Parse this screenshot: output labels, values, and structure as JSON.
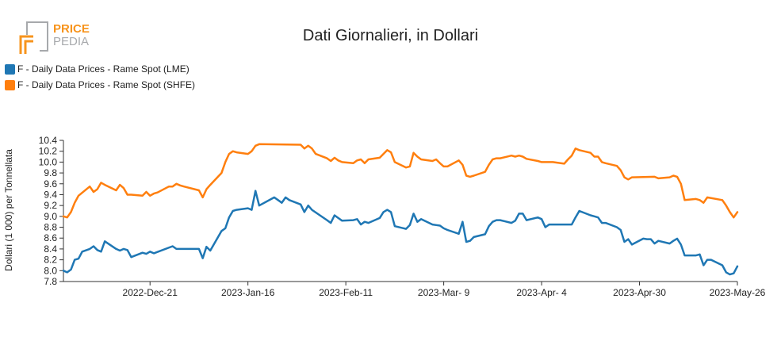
{
  "logo": {
    "line1": "PRICE",
    "line2": "PEDIA",
    "colors": {
      "orange": "#f7941d",
      "gray": "#a7a9ac"
    }
  },
  "chart_data": {
    "type": "line",
    "title": "Dati Giornalieri, in Dollari",
    "xlabel": "",
    "ylabel": "Dollari (1 000) per Tonnellata",
    "ylim": [
      7.8,
      10.4
    ],
    "yticks": [
      7.8,
      8.0,
      8.2,
      8.4,
      8.6,
      8.8,
      9.0,
      9.2,
      9.4,
      9.6,
      9.8,
      10.0,
      10.2,
      10.4
    ],
    "xrange": [
      "2022-11-28",
      "2023-05-26"
    ],
    "xticks": [
      {
        "date": "2022-12-21",
        "label": "2022-Dec-21"
      },
      {
        "date": "2023-01-16",
        "label": "2023-Jan-16"
      },
      {
        "date": "2023-02-11",
        "label": "2023-Feb-11"
      },
      {
        "date": "2023-03-09",
        "label": "2023-Mar- 9"
      },
      {
        "date": "2023-04-04",
        "label": "2023-Apr- 4"
      },
      {
        "date": "2023-04-30",
        "label": "2023-Apr-30"
      },
      {
        "date": "2023-05-26",
        "label": "2023-May-26"
      }
    ],
    "grid": false,
    "legend_position": "top-left",
    "series": [
      {
        "name": "F - Daily Data Prices - Rame Spot (LME)",
        "color": "#1f77b4",
        "points": [
          [
            "2022-11-28",
            8.0
          ],
          [
            "2022-11-29",
            7.97
          ],
          [
            "2022-11-30",
            8.02
          ],
          [
            "2022-12-01",
            8.2
          ],
          [
            "2022-12-02",
            8.22
          ],
          [
            "2022-12-03",
            8.35
          ],
          [
            "2022-12-05",
            8.4
          ],
          [
            "2022-12-06",
            8.45
          ],
          [
            "2022-12-07",
            8.38
          ],
          [
            "2022-12-08",
            8.35
          ],
          [
            "2022-12-09",
            8.54
          ],
          [
            "2022-12-12",
            8.4
          ],
          [
            "2022-12-13",
            8.37
          ],
          [
            "2022-12-14",
            8.4
          ],
          [
            "2022-12-15",
            8.38
          ],
          [
            "2022-12-16",
            8.25
          ],
          [
            "2022-12-19",
            8.33
          ],
          [
            "2022-12-20",
            8.31
          ],
          [
            "2022-12-21",
            8.35
          ],
          [
            "2022-12-22",
            8.32
          ],
          [
            "2022-12-27",
            8.45
          ],
          [
            "2022-12-28",
            8.4
          ],
          [
            "2022-12-30",
            8.4
          ],
          [
            "2023-01-03",
            8.4
          ],
          [
            "2023-01-04",
            8.23
          ],
          [
            "2023-01-05",
            8.44
          ],
          [
            "2023-01-06",
            8.37
          ],
          [
            "2023-01-09",
            8.73
          ],
          [
            "2023-01-10",
            8.78
          ],
          [
            "2023-01-11",
            8.98
          ],
          [
            "2023-01-12",
            9.1
          ],
          [
            "2023-01-13",
            9.12
          ],
          [
            "2023-01-16",
            9.15
          ],
          [
            "2023-01-17",
            9.12
          ],
          [
            "2023-01-18",
            9.47
          ],
          [
            "2023-01-19",
            9.2
          ],
          [
            "2023-01-23",
            9.35
          ],
          [
            "2023-01-24",
            9.3
          ],
          [
            "2023-01-25",
            9.25
          ],
          [
            "2023-01-26",
            9.35
          ],
          [
            "2023-01-27",
            9.3
          ],
          [
            "2023-01-30",
            9.22
          ],
          [
            "2023-01-31",
            9.08
          ],
          [
            "2023-02-01",
            9.2
          ],
          [
            "2023-02-02",
            9.12
          ],
          [
            "2023-02-06",
            8.93
          ],
          [
            "2023-02-07",
            8.88
          ],
          [
            "2023-02-08",
            9.02
          ],
          [
            "2023-02-09",
            8.97
          ],
          [
            "2023-02-10",
            8.92
          ],
          [
            "2023-02-13",
            8.93
          ],
          [
            "2023-02-14",
            8.95
          ],
          [
            "2023-02-15",
            8.85
          ],
          [
            "2023-02-16",
            8.9
          ],
          [
            "2023-02-17",
            8.88
          ],
          [
            "2023-02-20",
            8.97
          ],
          [
            "2023-02-21",
            9.08
          ],
          [
            "2023-02-22",
            9.12
          ],
          [
            "2023-02-23",
            9.08
          ],
          [
            "2023-02-24",
            8.82
          ],
          [
            "2023-02-27",
            8.77
          ],
          [
            "2023-02-28",
            8.84
          ],
          [
            "2023-03-01",
            9.05
          ],
          [
            "2023-03-02",
            8.9
          ],
          [
            "2023-03-03",
            8.95
          ],
          [
            "2023-03-06",
            8.85
          ],
          [
            "2023-03-07",
            8.84
          ],
          [
            "2023-03-08",
            8.83
          ],
          [
            "2023-03-09",
            8.78
          ],
          [
            "2023-03-10",
            8.75
          ],
          [
            "2023-03-13",
            8.68
          ],
          [
            "2023-03-14",
            8.9
          ],
          [
            "2023-03-15",
            8.53
          ],
          [
            "2023-03-16",
            8.55
          ],
          [
            "2023-03-17",
            8.62
          ],
          [
            "2023-03-20",
            8.67
          ],
          [
            "2023-03-21",
            8.82
          ],
          [
            "2023-03-22",
            8.9
          ],
          [
            "2023-03-23",
            8.93
          ],
          [
            "2023-03-24",
            8.93
          ],
          [
            "2023-03-27",
            8.88
          ],
          [
            "2023-03-28",
            8.92
          ],
          [
            "2023-03-29",
            9.05
          ],
          [
            "2023-03-30",
            9.05
          ],
          [
            "2023-03-31",
            8.93
          ],
          [
            "2023-04-03",
            8.98
          ],
          [
            "2023-04-04",
            8.95
          ],
          [
            "2023-04-05",
            8.8
          ],
          [
            "2023-04-06",
            8.85
          ],
          [
            "2023-04-11",
            8.85
          ],
          [
            "2023-04-12",
            8.85
          ],
          [
            "2023-04-13",
            8.98
          ],
          [
            "2023-04-14",
            9.1
          ],
          [
            "2023-04-17",
            9.02
          ],
          [
            "2023-04-18",
            9.0
          ],
          [
            "2023-04-19",
            8.98
          ],
          [
            "2023-04-20",
            8.88
          ],
          [
            "2023-04-21",
            8.88
          ],
          [
            "2023-04-24",
            8.8
          ],
          [
            "2023-04-25",
            8.75
          ],
          [
            "2023-04-26",
            8.53
          ],
          [
            "2023-04-27",
            8.58
          ],
          [
            "2023-04-28",
            8.48
          ],
          [
            "2023-05-01",
            8.59
          ],
          [
            "2023-05-02",
            8.58
          ],
          [
            "2023-05-03",
            8.58
          ],
          [
            "2023-05-04",
            8.5
          ],
          [
            "2023-05-05",
            8.55
          ],
          [
            "2023-05-08",
            8.5
          ],
          [
            "2023-05-09",
            8.55
          ],
          [
            "2023-05-10",
            8.59
          ],
          [
            "2023-05-11",
            8.48
          ],
          [
            "2023-05-12",
            8.28
          ],
          [
            "2023-05-15",
            8.28
          ],
          [
            "2023-05-16",
            8.3
          ],
          [
            "2023-05-17",
            8.1
          ],
          [
            "2023-05-18",
            8.2
          ],
          [
            "2023-05-19",
            8.2
          ],
          [
            "2023-05-22",
            8.1
          ],
          [
            "2023-05-23",
            7.97
          ],
          [
            "2023-05-24",
            7.93
          ],
          [
            "2023-05-25",
            7.95
          ],
          [
            "2023-05-26",
            8.08
          ]
        ]
      },
      {
        "name": "F - Daily Data Prices - Rame Spot (SHFE)",
        "color": "#ff7f0e",
        "points": [
          [
            "2022-11-28",
            9.0
          ],
          [
            "2022-11-29",
            8.98
          ],
          [
            "2022-11-30",
            9.08
          ],
          [
            "2022-12-01",
            9.25
          ],
          [
            "2022-12-02",
            9.38
          ],
          [
            "2022-12-05",
            9.55
          ],
          [
            "2022-12-06",
            9.45
          ],
          [
            "2022-12-07",
            9.5
          ],
          [
            "2022-12-08",
            9.62
          ],
          [
            "2022-12-09",
            9.58
          ],
          [
            "2022-12-12",
            9.48
          ],
          [
            "2022-12-13",
            9.58
          ],
          [
            "2022-12-14",
            9.52
          ],
          [
            "2022-12-15",
            9.4
          ],
          [
            "2022-12-16",
            9.4
          ],
          [
            "2022-12-19",
            9.38
          ],
          [
            "2022-12-20",
            9.45
          ],
          [
            "2022-12-21",
            9.38
          ],
          [
            "2022-12-22",
            9.42
          ],
          [
            "2022-12-23",
            9.44
          ],
          [
            "2022-12-26",
            9.55
          ],
          [
            "2022-12-27",
            9.55
          ],
          [
            "2022-12-28",
            9.6
          ],
          [
            "2022-12-29",
            9.57
          ],
          [
            "2022-12-30",
            9.55
          ],
          [
            "2023-01-03",
            9.48
          ],
          [
            "2023-01-04",
            9.35
          ],
          [
            "2023-01-05",
            9.5
          ],
          [
            "2023-01-06",
            9.58
          ],
          [
            "2023-01-09",
            9.8
          ],
          [
            "2023-01-10",
            10.0
          ],
          [
            "2023-01-11",
            10.15
          ],
          [
            "2023-01-12",
            10.2
          ],
          [
            "2023-01-13",
            10.18
          ],
          [
            "2023-01-16",
            10.15
          ],
          [
            "2023-01-17",
            10.2
          ],
          [
            "2023-01-18",
            10.3
          ],
          [
            "2023-01-19",
            10.33
          ],
          [
            "2023-01-30",
            10.32
          ],
          [
            "2023-01-31",
            10.25
          ],
          [
            "2023-02-01",
            10.3
          ],
          [
            "2023-02-02",
            10.25
          ],
          [
            "2023-02-03",
            10.15
          ],
          [
            "2023-02-06",
            10.07
          ],
          [
            "2023-02-07",
            10.02
          ],
          [
            "2023-02-08",
            10.08
          ],
          [
            "2023-02-09",
            10.03
          ],
          [
            "2023-02-10",
            10.0
          ],
          [
            "2023-02-13",
            9.98
          ],
          [
            "2023-02-14",
            10.03
          ],
          [
            "2023-02-15",
            10.05
          ],
          [
            "2023-02-16",
            9.98
          ],
          [
            "2023-02-17",
            10.05
          ],
          [
            "2023-02-20",
            10.08
          ],
          [
            "2023-02-21",
            10.15
          ],
          [
            "2023-02-22",
            10.22
          ],
          [
            "2023-02-23",
            10.18
          ],
          [
            "2023-02-24",
            10.0
          ],
          [
            "2023-02-27",
            9.9
          ],
          [
            "2023-02-28",
            9.92
          ],
          [
            "2023-03-01",
            10.17
          ],
          [
            "2023-03-02",
            10.1
          ],
          [
            "2023-03-03",
            10.05
          ],
          [
            "2023-03-06",
            10.02
          ],
          [
            "2023-03-07",
            10.05
          ],
          [
            "2023-03-08",
            9.98
          ],
          [
            "2023-03-09",
            9.92
          ],
          [
            "2023-03-10",
            9.92
          ],
          [
            "2023-03-13",
            10.03
          ],
          [
            "2023-03-14",
            9.95
          ],
          [
            "2023-03-15",
            9.75
          ],
          [
            "2023-03-16",
            9.73
          ],
          [
            "2023-03-17",
            9.75
          ],
          [
            "2023-03-20",
            9.82
          ],
          [
            "2023-03-21",
            9.95
          ],
          [
            "2023-03-22",
            10.05
          ],
          [
            "2023-03-23",
            10.07
          ],
          [
            "2023-03-24",
            10.07
          ],
          [
            "2023-03-27",
            10.12
          ],
          [
            "2023-03-28",
            10.1
          ],
          [
            "2023-03-29",
            10.12
          ],
          [
            "2023-03-30",
            10.1
          ],
          [
            "2023-03-31",
            10.06
          ],
          [
            "2023-04-03",
            10.02
          ],
          [
            "2023-04-04",
            10.0
          ],
          [
            "2023-04-06",
            10.0
          ],
          [
            "2023-04-07",
            10.0
          ],
          [
            "2023-04-10",
            9.97
          ],
          [
            "2023-04-11",
            10.05
          ],
          [
            "2023-04-12",
            10.12
          ],
          [
            "2023-04-13",
            10.25
          ],
          [
            "2023-04-14",
            10.22
          ],
          [
            "2023-04-17",
            10.17
          ],
          [
            "2023-04-18",
            10.1
          ],
          [
            "2023-04-19",
            10.1
          ],
          [
            "2023-04-20",
            10.0
          ],
          [
            "2023-04-21",
            9.98
          ],
          [
            "2023-04-24",
            9.93
          ],
          [
            "2023-04-25",
            9.85
          ],
          [
            "2023-04-26",
            9.72
          ],
          [
            "2023-04-27",
            9.68
          ],
          [
            "2023-04-28",
            9.72
          ],
          [
            "2023-05-04",
            9.73
          ],
          [
            "2023-05-05",
            9.7
          ],
          [
            "2023-05-08",
            9.72
          ],
          [
            "2023-05-09",
            9.75
          ],
          [
            "2023-05-10",
            9.73
          ],
          [
            "2023-05-11",
            9.6
          ],
          [
            "2023-05-12",
            9.3
          ],
          [
            "2023-05-15",
            9.32
          ],
          [
            "2023-05-16",
            9.3
          ],
          [
            "2023-05-17",
            9.25
          ],
          [
            "2023-05-18",
            9.35
          ],
          [
            "2023-05-22",
            9.3
          ],
          [
            "2023-05-23",
            9.2
          ],
          [
            "2023-05-24",
            9.08
          ],
          [
            "2023-05-25",
            8.98
          ],
          [
            "2023-05-26",
            9.08
          ]
        ]
      }
    ]
  }
}
